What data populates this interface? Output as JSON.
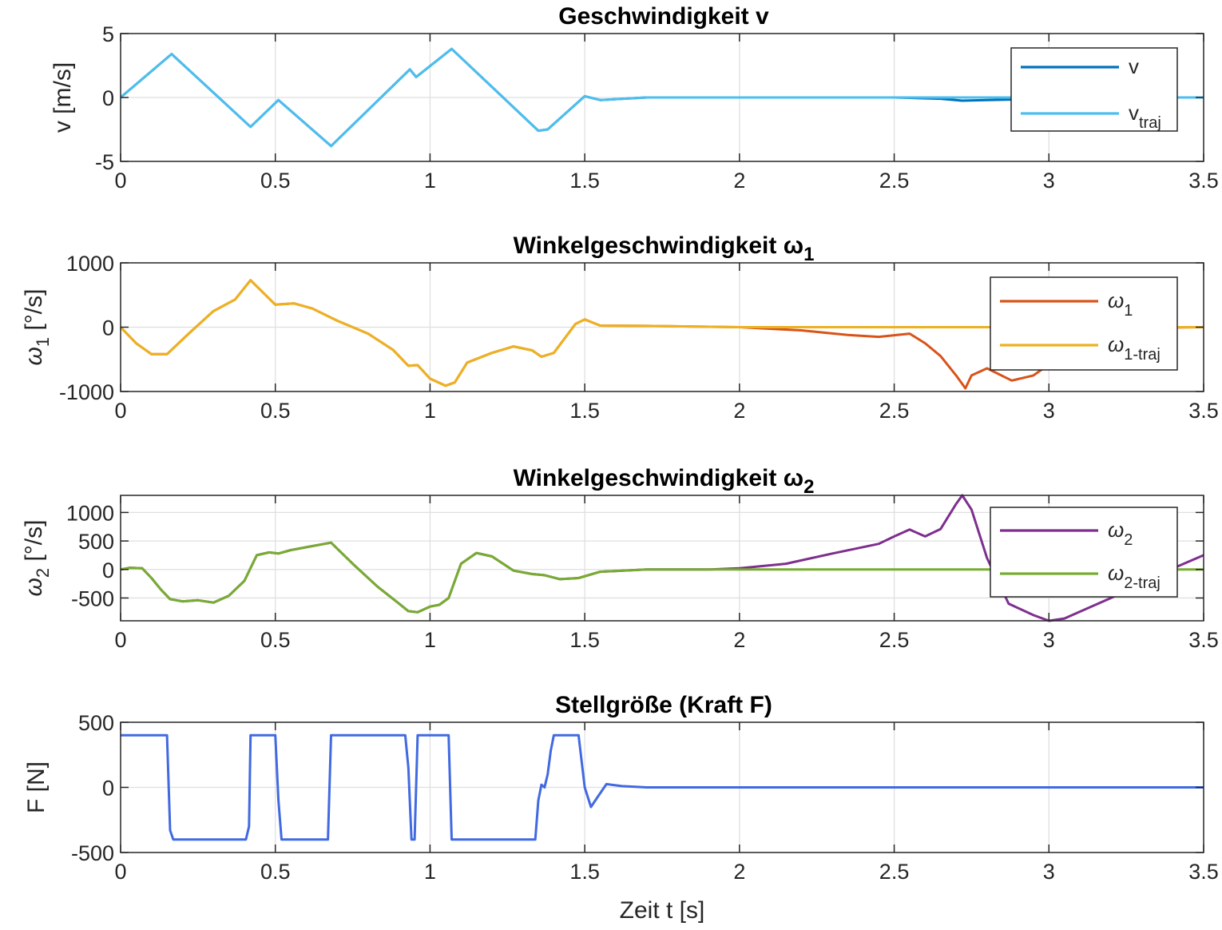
{
  "chart_data": [
    {
      "type": "line",
      "title": "Geschwindigkeit v",
      "xlabel": "",
      "ylabel": "v [m/s]",
      "xlim": [
        0,
        3.5
      ],
      "ylim": [
        -5,
        5
      ],
      "xticks": [
        "0",
        "0.5",
        "1",
        "1.5",
        "2",
        "2.5",
        "3",
        "3.5"
      ],
      "yticks": [
        "-5",
        "0",
        "5"
      ],
      "ytick_values": [
        -5,
        0,
        5
      ],
      "grid": true,
      "legend_position": "top-right",
      "series": [
        {
          "name": "v",
          "color": "#0072BD",
          "x": [
            0,
            0.165,
            0.42,
            0.51,
            0.68,
            0.935,
            0.955,
            1.07,
            1.35,
            1.38,
            1.5,
            1.55,
            1.7,
            2.0,
            2.5,
            2.65,
            2.72,
            2.8,
            2.9,
            3.0,
            3.1,
            3.3,
            3.5
          ],
          "y": [
            0,
            3.4,
            -2.3,
            -0.2,
            -3.8,
            2.2,
            1.6,
            3.8,
            -2.6,
            -2.5,
            0.1,
            -0.2,
            0,
            0,
            0,
            -0.1,
            -0.25,
            -0.2,
            -0.15,
            -0.1,
            0,
            0,
            0
          ]
        },
        {
          "name": "v_traj",
          "legend_main": "v",
          "legend_sub": "traj",
          "color": "#4DBEEE",
          "x": [
            0,
            0.165,
            0.42,
            0.51,
            0.68,
            0.935,
            0.955,
            1.07,
            1.35,
            1.38,
            1.5,
            1.55,
            1.7,
            2.0,
            2.5,
            3.0,
            3.5
          ],
          "y": [
            0,
            3.4,
            -2.3,
            -0.2,
            -3.8,
            2.2,
            1.6,
            3.8,
            -2.6,
            -2.5,
            0.1,
            -0.2,
            0,
            0,
            0,
            0,
            0
          ]
        }
      ]
    },
    {
      "type": "line",
      "title": "Winkelgeschwindigkeit ω",
      "title_sub": "1",
      "xlabel": "",
      "ylabel": "ω",
      "ylabel_sub": "1",
      "ylabel_tail": " [°/s]",
      "xlim": [
        0,
        3.5
      ],
      "ylim": [
        -1000,
        1000
      ],
      "xticks": [
        "0",
        "0.5",
        "1",
        "1.5",
        "2",
        "2.5",
        "3",
        "3.5"
      ],
      "yticks": [
        "-1000",
        "0",
        "1000"
      ],
      "ytick_values": [
        -1000,
        0,
        1000
      ],
      "grid": true,
      "legend_position": "top-right",
      "series": [
        {
          "name": "ω1",
          "legend_main": "ω",
          "legend_sub": "1",
          "color": "#D95319",
          "x": [
            0,
            0.05,
            0.1,
            0.15,
            0.22,
            0.3,
            0.37,
            0.42,
            0.5,
            0.56,
            0.62,
            0.7,
            0.8,
            0.88,
            0.93,
            0.96,
            1.0,
            1.05,
            1.08,
            1.12,
            1.2,
            1.27,
            1.33,
            1.36,
            1.4,
            1.47,
            1.5,
            1.55,
            1.7,
            2.0,
            2.2,
            2.35,
            2.45,
            2.55,
            2.6,
            2.65,
            2.7,
            2.73,
            2.75,
            2.8,
            2.88,
            2.95,
            3.0,
            3.1,
            3.2,
            3.3,
            3.5
          ],
          "y": [
            0,
            -250,
            -420,
            -420,
            -100,
            250,
            430,
            730,
            350,
            370,
            290,
            100,
            -100,
            -350,
            -600,
            -590,
            -800,
            -910,
            -860,
            -550,
            -400,
            -300,
            -360,
            -460,
            -400,
            50,
            120,
            25,
            20,
            0,
            -50,
            -120,
            -150,
            -100,
            -250,
            -450,
            -750,
            -950,
            -750,
            -640,
            -830,
            -750,
            -580,
            -200,
            -40,
            -10,
            0
          ]
        },
        {
          "name": "ω1-traj",
          "legend_main": "ω",
          "legend_sub": "1-traj",
          "color": "#EDB120",
          "x": [
            0,
            0.05,
            0.1,
            0.15,
            0.22,
            0.3,
            0.37,
            0.42,
            0.5,
            0.56,
            0.62,
            0.7,
            0.8,
            0.88,
            0.93,
            0.96,
            1.0,
            1.05,
            1.08,
            1.12,
            1.2,
            1.27,
            1.33,
            1.36,
            1.4,
            1.47,
            1.5,
            1.55,
            1.7,
            2.0,
            2.5,
            3.0,
            3.5
          ],
          "y": [
            0,
            -250,
            -420,
            -420,
            -100,
            250,
            430,
            730,
            350,
            370,
            290,
            100,
            -100,
            -350,
            -600,
            -590,
            -800,
            -910,
            -860,
            -550,
            -400,
            -300,
            -360,
            -460,
            -400,
            50,
            120,
            25,
            20,
            0,
            0,
            0,
            0
          ]
        }
      ]
    },
    {
      "type": "line",
      "title": "Winkelgeschwindigkeit ω",
      "title_sub": "2",
      "xlabel": "",
      "ylabel": "ω",
      "ylabel_sub": "2",
      "ylabel_tail": " [°/s]",
      "xlim": [
        0,
        3.5
      ],
      "ylim": [
        -900,
        1300
      ],
      "xticks": [
        "0",
        "0.5",
        "1",
        "1.5",
        "2",
        "2.5",
        "3",
        "3.5"
      ],
      "yticks": [
        "-500",
        "0",
        "500",
        "1000"
      ],
      "ytick_values": [
        -500,
        0,
        500,
        1000
      ],
      "grid": true,
      "legend_position": "top-right",
      "series": [
        {
          "name": "ω2",
          "legend_main": "ω",
          "legend_sub": "2",
          "color": "#7E2F8E",
          "x": [
            0,
            0.03,
            0.07,
            0.1,
            0.13,
            0.16,
            0.2,
            0.25,
            0.3,
            0.35,
            0.4,
            0.44,
            0.48,
            0.51,
            0.55,
            0.6,
            0.68,
            0.75,
            0.83,
            0.9,
            0.93,
            0.96,
            1.0,
            1.03,
            1.06,
            1.1,
            1.15,
            1.2,
            1.27,
            1.33,
            1.37,
            1.42,
            1.48,
            1.55,
            1.7,
            1.9,
            2.0,
            2.15,
            2.3,
            2.45,
            2.5,
            2.55,
            2.6,
            2.65,
            2.7,
            2.72,
            2.75,
            2.8,
            2.87,
            2.95,
            3.0,
            3.05,
            3.2,
            3.35,
            3.5
          ],
          "y": [
            0,
            30,
            20,
            -150,
            -350,
            -520,
            -560,
            -540,
            -580,
            -460,
            -200,
            250,
            300,
            280,
            340,
            390,
            470,
            100,
            -300,
            -600,
            -730,
            -750,
            -650,
            -620,
            -500,
            100,
            290,
            230,
            -20,
            -80,
            -100,
            -170,
            -150,
            -40,
            0,
            0,
            20,
            100,
            280,
            450,
            580,
            700,
            580,
            710,
            1150,
            1300,
            1050,
            200,
            -600,
            -800,
            -900,
            -860,
            -500,
            -100,
            250
          ]
        },
        {
          "name": "ω2-traj",
          "legend_main": "ω",
          "legend_sub": "2-traj",
          "color": "#77AC30",
          "x": [
            0,
            0.03,
            0.07,
            0.1,
            0.13,
            0.16,
            0.2,
            0.25,
            0.3,
            0.35,
            0.4,
            0.44,
            0.48,
            0.51,
            0.55,
            0.6,
            0.68,
            0.75,
            0.83,
            0.9,
            0.93,
            0.96,
            1.0,
            1.03,
            1.06,
            1.1,
            1.15,
            1.2,
            1.27,
            1.33,
            1.37,
            1.42,
            1.48,
            1.55,
            1.7,
            1.9,
            2.0,
            2.5,
            3.0,
            3.5
          ],
          "y": [
            0,
            30,
            20,
            -150,
            -350,
            -520,
            -560,
            -540,
            -580,
            -460,
            -200,
            250,
            300,
            280,
            340,
            390,
            470,
            100,
            -300,
            -600,
            -730,
            -750,
            -650,
            -620,
            -500,
            100,
            290,
            230,
            -20,
            -80,
            -100,
            -170,
            -150,
            -40,
            0,
            0,
            0,
            0,
            0,
            0
          ]
        }
      ]
    },
    {
      "type": "line",
      "title": "Stellgröße (Kraft F)",
      "xlabel": "Zeit t [s]",
      "ylabel": "F [N]",
      "xlim": [
        0,
        3.5
      ],
      "ylim": [
        -500,
        500
      ],
      "xticks": [
        "0",
        "0.5",
        "1",
        "1.5",
        "2",
        "2.5",
        "3",
        "3.5"
      ],
      "yticks": [
        "-500",
        "0",
        "500"
      ],
      "ytick_values": [
        -500,
        0,
        500
      ],
      "grid": true,
      "series": [
        {
          "name": "F",
          "color": "#4169E1",
          "x": [
            0,
            0.15,
            0.16,
            0.17,
            0.405,
            0.415,
            0.42,
            0.5,
            0.51,
            0.52,
            0.67,
            0.68,
            0.92,
            0.93,
            0.94,
            0.95,
            0.96,
            0.97,
            1.06,
            1.07,
            1.34,
            1.35,
            1.36,
            1.37,
            1.38,
            1.39,
            1.4,
            1.42,
            1.48,
            1.5,
            1.52,
            1.54,
            1.57,
            1.62,
            1.7,
            2.0,
            3.5
          ],
          "y": [
            400,
            400,
            -330,
            -400,
            -400,
            -300,
            400,
            400,
            -100,
            -400,
            -400,
            400,
            400,
            150,
            -400,
            -400,
            400,
            400,
            400,
            -400,
            -400,
            -100,
            20,
            0,
            100,
            280,
            400,
            400,
            400,
            0,
            -150,
            -80,
            25,
            10,
            0,
            0,
            0
          ]
        }
      ]
    }
  ]
}
